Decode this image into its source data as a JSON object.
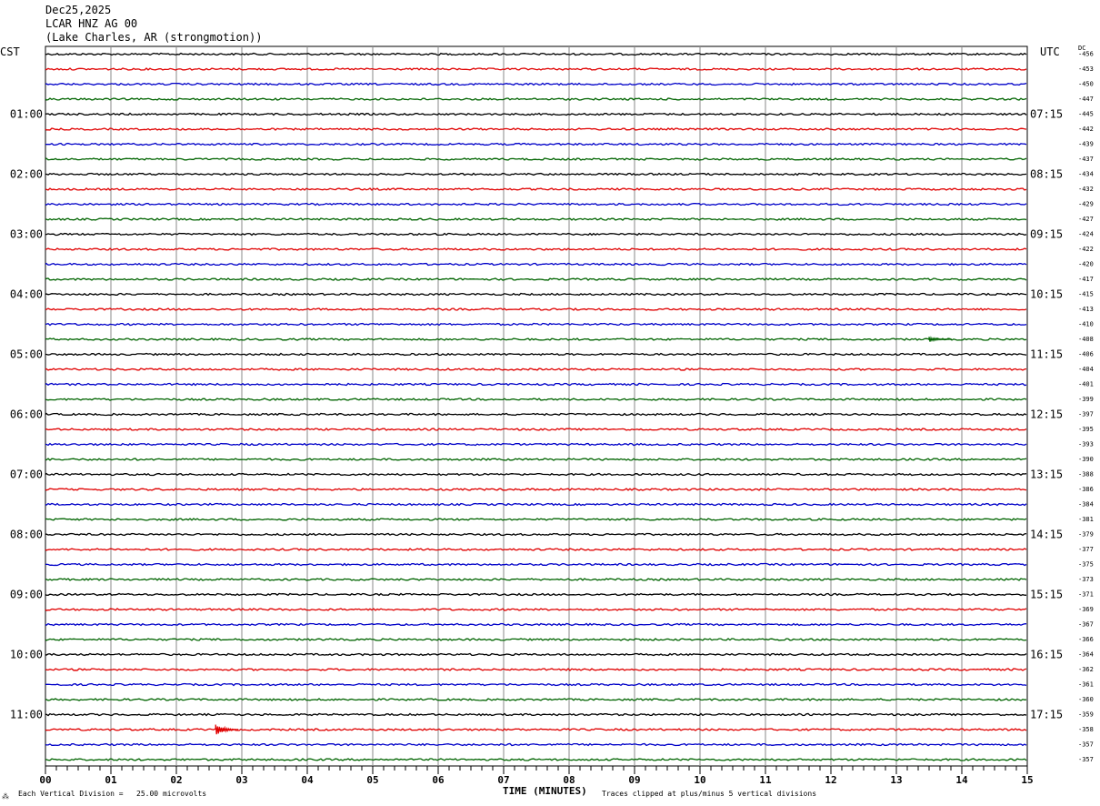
{
  "header": {
    "date": "Dec25,2025",
    "station": "LCAR HNZ AG 00",
    "location": "(Lake Charles, AR (strongmotion))"
  },
  "axes": {
    "left_timezone": "CST",
    "right_timezone": "UTC",
    "dc_label": "DC",
    "x_title": "TIME (MINUTES)"
  },
  "footer": {
    "scale_text": "Each Vertical Division =   25.00 microvolts",
    "clip_text": "Traces clipped at plus/minus 5 vertical divisions"
  },
  "chart_data": {
    "type": "line",
    "title": "LCAR HNZ AG 00",
    "xlabel": "TIME (MINUTES)",
    "xlim": [
      0,
      15
    ],
    "x_ticks": [
      "00",
      "01",
      "02",
      "03",
      "04",
      "05",
      "06",
      "07",
      "08",
      "09",
      "10",
      "11",
      "12",
      "13",
      "14",
      "15"
    ],
    "trace_colors": [
      "#000000",
      "#e00000",
      "#0000c8",
      "#006400"
    ],
    "trace_minutes_each": 15,
    "trace_count": 48,
    "left_hour_labels": [
      "01:00",
      "02:00",
      "03:00",
      "04:00",
      "05:00",
      "06:00",
      "07:00",
      "08:00",
      "09:00",
      "10:00",
      "11:00"
    ],
    "right_hour_labels": [
      "07:15",
      "08:15",
      "09:15",
      "10:15",
      "11:15",
      "12:15",
      "13:15",
      "14:15",
      "15:15",
      "16:15",
      "17:15"
    ],
    "dc_offsets": [
      -456,
      -453,
      -450,
      -447,
      -445,
      -442,
      -439,
      -437,
      -434,
      -432,
      -429,
      -427,
      -424,
      -422,
      -420,
      -417,
      -415,
      -413,
      -410,
      -408,
      -406,
      -404,
      -401,
      -399,
      -397,
      -395,
      -393,
      -390,
      -388,
      -386,
      -384,
      -381,
      -379,
      -377,
      -375,
      -373,
      -371,
      -369,
      -367,
      -366,
      -364,
      -362,
      -361,
      -360,
      -359,
      -358,
      -357,
      -357
    ],
    "events": [
      {
        "trace_index": 45,
        "minute": 2.6,
        "amplitude_divisions": 1.2
      },
      {
        "trace_index": 19,
        "minute": 13.5,
        "amplitude_divisions": 0.5
      }
    ],
    "grid": true
  }
}
